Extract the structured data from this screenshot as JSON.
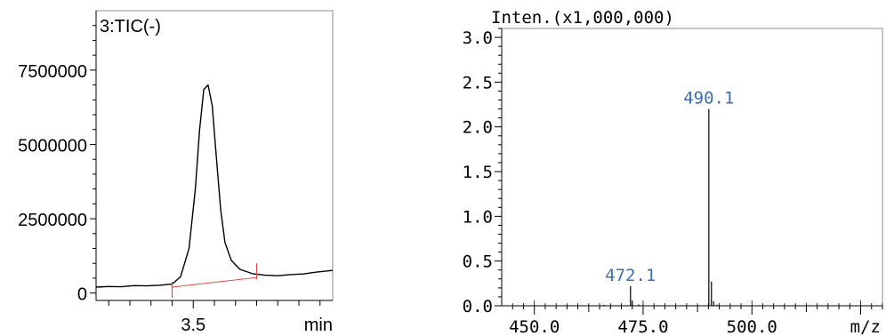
{
  "chart_data": [
    {
      "type": "line",
      "title": "3:TIC(-)",
      "xlabel": "min",
      "ylabel": "",
      "xlim": [
        3.27,
        3.83
      ],
      "ylim": [
        -250000,
        9500000
      ],
      "x_ticks": [
        3.5
      ],
      "x_tick_labels": [
        "3.5"
      ],
      "y_ticks": [
        0,
        2500000,
        5000000,
        7500000
      ],
      "y_tick_labels": [
        "0",
        "2500000",
        "5000000",
        "7500000"
      ],
      "grid": false,
      "legend": "none",
      "series": [
        {
          "name": "",
          "x": [
            3.27,
            3.3,
            3.33,
            3.36,
            3.39,
            3.42,
            3.45,
            3.47,
            3.49,
            3.505,
            3.515,
            3.525,
            3.535,
            3.545,
            3.555,
            3.565,
            3.575,
            3.59,
            3.61,
            3.64,
            3.67,
            3.7,
            3.73,
            3.76,
            3.79,
            3.83
          ],
          "y": [
            200000,
            220000,
            210000,
            250000,
            240000,
            260000,
            300000,
            550000,
            1500000,
            3500000,
            5500000,
            6850000,
            7000000,
            6300000,
            4500000,
            2800000,
            1700000,
            1100000,
            800000,
            650000,
            600000,
            580000,
            620000,
            640000,
            700000,
            760000
          ],
          "color": "#000000"
        }
      ],
      "integration_baseline": {
        "start": [
          3.45,
          200000
        ],
        "end": [
          3.65,
          520000
        ],
        "color": "#e34a4a"
      }
    },
    {
      "type": "bar",
      "title": "Inten.(x1,000,000)",
      "xlabel": "m/z",
      "ylabel": "",
      "xlim": [
        442.5,
        530.0
      ],
      "ylim": [
        0.0,
        3.1
      ],
      "x_ticks": [
        450.0,
        475.0,
        500.0
      ],
      "x_tick_labels": [
        "450.0",
        "475.0",
        "500.0"
      ],
      "y_ticks": [
        0.0,
        0.5,
        1.0,
        1.5,
        2.0,
        2.5,
        3.0
      ],
      "y_tick_labels": [
        "0.0",
        "0.5",
        "1.0",
        "1.5",
        "2.0",
        "2.5",
        "3.0"
      ],
      "grid": false,
      "legend": "none",
      "peaks": [
        {
          "mz": 472.1,
          "intensity": 0.22,
          "label": "472.1"
        },
        {
          "mz": 472.5,
          "intensity": 0.06
        },
        {
          "mz": 490.1,
          "intensity": 2.2,
          "label": "490.1"
        },
        {
          "mz": 490.7,
          "intensity": 0.27
        },
        {
          "mz": 491.2,
          "intensity": 0.05
        },
        {
          "mz": 474.0,
          "intensity": 0.015
        },
        {
          "mz": 466.0,
          "intensity": 0.01
        },
        {
          "mz": 492.0,
          "intensity": 0.012
        }
      ],
      "peak_color": "#000000",
      "label_color": "#3b6fb6"
    }
  ]
}
